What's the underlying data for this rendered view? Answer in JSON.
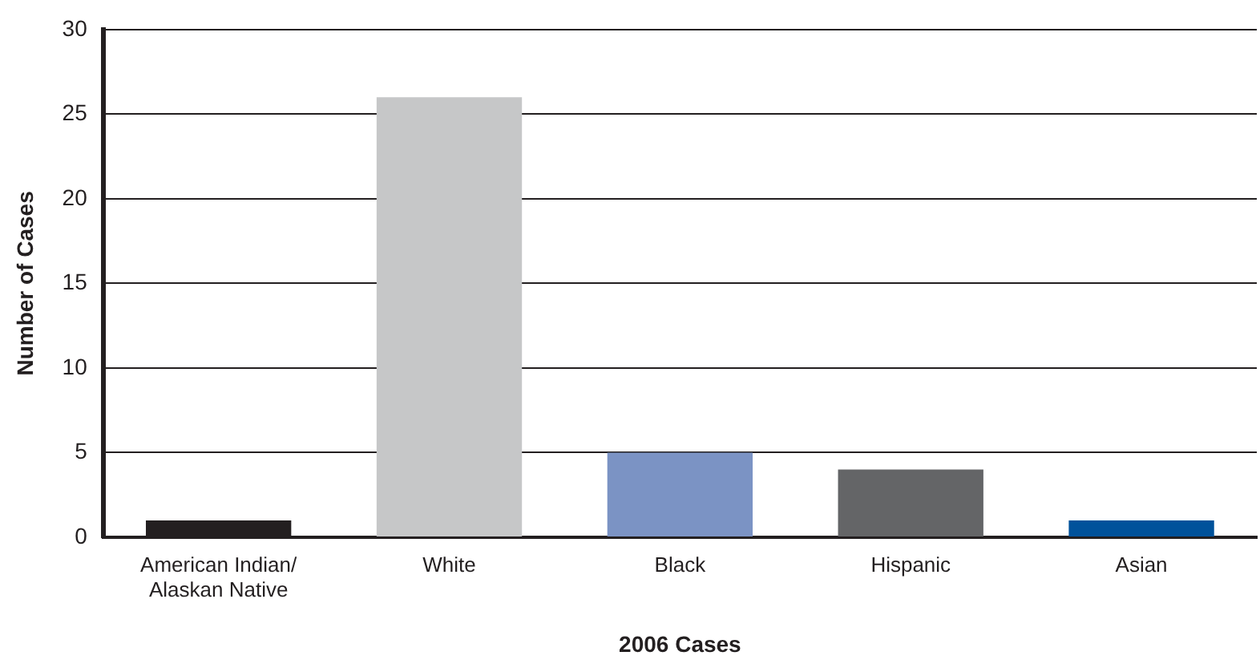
{
  "chart_data": {
    "type": "bar",
    "xlabel": "2006 Cases",
    "ylabel": "Number of Cases",
    "categories": [
      "American Indian/ Alaskan Native",
      "White",
      "Black",
      "Hispanic",
      "Asian"
    ],
    "values": [
      1,
      26,
      5,
      4,
      1
    ],
    "colors": [
      "#231f20",
      "#c6c7c8",
      "#7b93c4",
      "#646567",
      "#00529b"
    ],
    "ylim": [
      0,
      30
    ],
    "yticks": [
      0,
      5,
      10,
      15,
      20,
      25,
      30
    ],
    "grid": "y",
    "legend": false
  }
}
